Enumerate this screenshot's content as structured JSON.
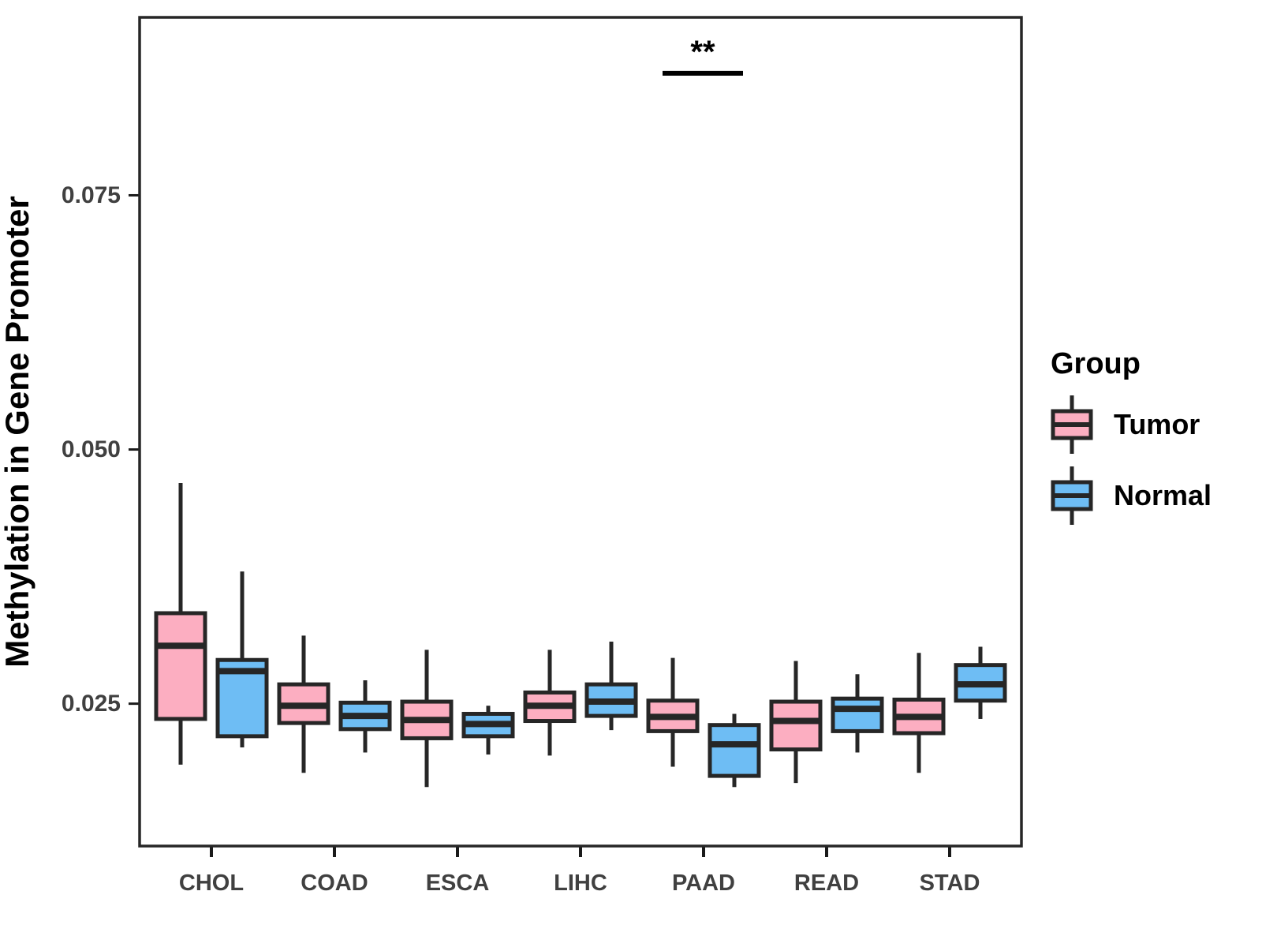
{
  "legend": {
    "title": "Group",
    "entries": [
      {
        "label": "Tumor",
        "color": "#FCAEC1"
      },
      {
        "label": "Normal",
        "color": "#6EBDF4"
      }
    ]
  },
  "chart_data": {
    "type": "boxplot",
    "title": "",
    "xlabel": "",
    "ylabel": "Methylation in Gene Promoter",
    "ylim": [
      0.011,
      0.0925
    ],
    "y_ticks": [
      0.025,
      0.05,
      0.075
    ],
    "y_tick_labels": [
      "0.025",
      "0.050",
      "0.075"
    ],
    "categories": [
      "CHOL",
      "COAD",
      "ESCA",
      "LIHC",
      "PAAD",
      "READ",
      "STAD"
    ],
    "grid": false,
    "legend_position": "right",
    "style": {
      "box_border_color": "#262626",
      "axis_text_color": "#404040",
      "panel_border_color": "#262626"
    },
    "series": [
      {
        "name": "Tumor",
        "color": "#FCAEC1",
        "boxes": [
          {
            "category": "CHOL",
            "min": 0.019,
            "q1": 0.0235,
            "median": 0.0307,
            "q3": 0.0339,
            "max": 0.0467
          },
          {
            "category": "COAD",
            "min": 0.0182,
            "q1": 0.0231,
            "median": 0.0248,
            "q3": 0.0269,
            "max": 0.0317
          },
          {
            "category": "ESCA",
            "min": 0.0168,
            "q1": 0.0216,
            "median": 0.0234,
            "q3": 0.0252,
            "max": 0.0303
          },
          {
            "category": "LIHC",
            "min": 0.0199,
            "q1": 0.0233,
            "median": 0.0248,
            "q3": 0.0261,
            "max": 0.0303
          },
          {
            "category": "PAAD",
            "min": 0.0188,
            "q1": 0.0223,
            "median": 0.0237,
            "q3": 0.0253,
            "max": 0.0295
          },
          {
            "category": "READ",
            "min": 0.0172,
            "q1": 0.0205,
            "median": 0.0233,
            "q3": 0.0252,
            "max": 0.0292
          },
          {
            "category": "STAD",
            "min": 0.0182,
            "q1": 0.0221,
            "median": 0.0237,
            "q3": 0.0254,
            "max": 0.03
          }
        ]
      },
      {
        "name": "Normal",
        "color": "#6EBDF4",
        "boxes": [
          {
            "category": "CHOL",
            "min": 0.0207,
            "q1": 0.0218,
            "median": 0.0282,
            "q3": 0.0293,
            "max": 0.038
          },
          {
            "category": "COAD",
            "min": 0.0202,
            "q1": 0.0225,
            "median": 0.0238,
            "q3": 0.0251,
            "max": 0.0273
          },
          {
            "category": "ESCA",
            "min": 0.02,
            "q1": 0.0218,
            "median": 0.023,
            "q3": 0.024,
            "max": 0.0248
          },
          {
            "category": "LIHC",
            "min": 0.0224,
            "q1": 0.0238,
            "median": 0.0252,
            "q3": 0.0269,
            "max": 0.0311
          },
          {
            "category": "PAAD",
            "min": 0.0168,
            "q1": 0.0179,
            "median": 0.021,
            "q3": 0.0229,
            "max": 0.024
          },
          {
            "category": "READ",
            "min": 0.0202,
            "q1": 0.0223,
            "median": 0.0245,
            "q3": 0.0255,
            "max": 0.0279
          },
          {
            "category": "STAD",
            "min": 0.0235,
            "q1": 0.0253,
            "median": 0.0269,
            "q3": 0.0288,
            "max": 0.0306
          }
        ]
      }
    ],
    "annotation": {
      "text": "**",
      "category": "PAAD",
      "line_y": 0.087
    }
  }
}
